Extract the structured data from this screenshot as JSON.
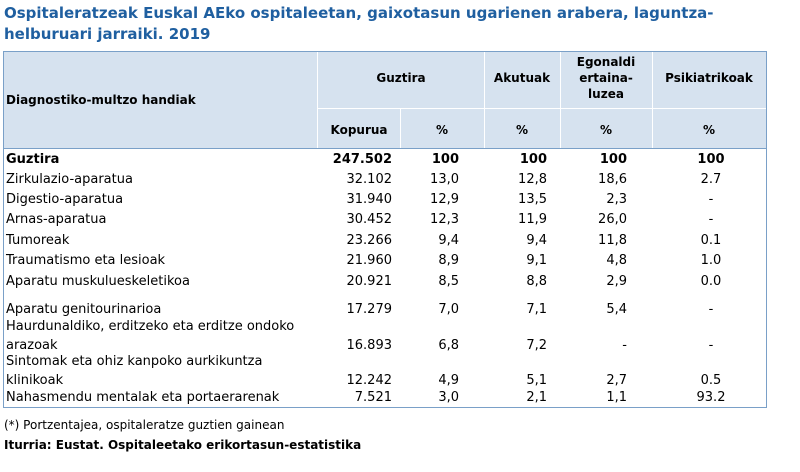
{
  "title_line1": "Ospitaleratzeak Euskal AEko ospitaleetan, gaixotasun ugarienen arabera, laguntza-",
  "title_line2": "helburuari jarraiki. 2019",
  "header": {
    "row_label": "Diagnostiko-multzo handiak",
    "guztira": "Guztira",
    "akutuak": "Akutuak",
    "egonaldi_1": "Egonaldi",
    "egonaldi_2": "ertaina-",
    "egonaldi_3": "luzea",
    "psikiatrikoak": "Psikiatrikoak",
    "kopurua": "Kopurua",
    "pct": "%"
  },
  "rows": [
    {
      "label": "Guztira",
      "kopurua": "247.502",
      "pct": "100",
      "akutuak": "100",
      "egonaldi": "100",
      "psik": "100"
    },
    {
      "label": "Zirkulazio-aparatua",
      "kopurua": "32.102",
      "pct": "13,0",
      "akutuak": "12,8",
      "egonaldi": "18,6",
      "psik": "2.7"
    },
    {
      "label": "Digestio-aparatua",
      "kopurua": "31.940",
      "pct": "12,9",
      "akutuak": "13,5",
      "egonaldi": "2,3",
      "psik": "-"
    },
    {
      "label": "Arnas-aparatua",
      "kopurua": "30.452",
      "pct": "12,3",
      "akutuak": "11,9",
      "egonaldi": "26,0",
      "psik": "-"
    },
    {
      "label": "Tumoreak",
      "kopurua": "23.266",
      "pct": "9,4",
      "akutuak": "9,4",
      "egonaldi": "11,8",
      "psik": "0.1"
    },
    {
      "label": "Traumatismo eta lesioak",
      "kopurua": "21.960",
      "pct": "8,9",
      "akutuak": "9,1",
      "egonaldi": "4,8",
      "psik": "1.0"
    },
    {
      "label": "Aparatu muskulueskeletikoa",
      "kopurua": "20.921",
      "pct": "8,5",
      "akutuak": "8,8",
      "egonaldi": "2,9",
      "psik": "0.0"
    },
    {
      "label": "Aparatu genitourinarioa",
      "kopurua": "17.279",
      "pct": "7,0",
      "akutuak": "7,1",
      "egonaldi": "5,4",
      "psik": "-"
    },
    {
      "label_1": "Haurdunaldiko, erditzeko eta erditze ondoko",
      "label_2": "arazoak",
      "kopurua": "16.893",
      "pct": "6,8",
      "akutuak": "7,2",
      "egonaldi": "-",
      "psik": "-"
    },
    {
      "label_1": "Sintomak eta ohiz kanpoko aurkikuntza",
      "label_2": "klinikoak",
      "kopurua": "12.242",
      "pct": "4,9",
      "akutuak": "5,1",
      "egonaldi": "2,7",
      "psik": "0.5"
    },
    {
      "label": "Nahasmendu mentalak eta portaerarenak",
      "kopurua": "7.521",
      "pct": "3,0",
      "akutuak": "2,1",
      "egonaldi": "1,1",
      "psik": "93.2"
    }
  ],
  "footnote": "(*) Portzentajea, ospitaleratze guztien gainean",
  "source": "Iturria: Eustat. Ospitaleetako erikortasun-estatistika"
}
